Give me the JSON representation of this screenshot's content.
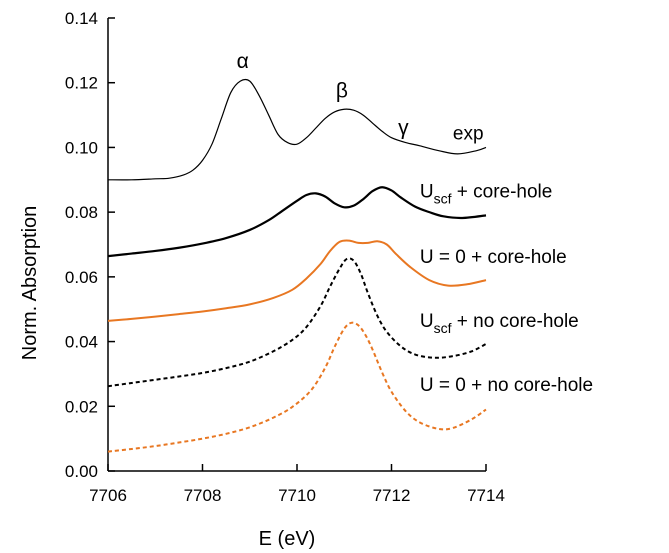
{
  "chart_data": {
    "type": "line",
    "xlabel": "E (eV)",
    "ylabel": "Norm. Absorption",
    "xlim": [
      7706,
      7714
    ],
    "ylim": [
      0.0,
      0.14
    ],
    "xticks": [
      "7706",
      "7708",
      "7710",
      "7712",
      "7714"
    ],
    "yticks": [
      "0.00",
      "0.02",
      "0.04",
      "0.06",
      "0.08",
      "0.10",
      "0.12",
      "0.14"
    ],
    "grid": false,
    "peak_labels": [
      {
        "text": "α",
        "x": 7708.85,
        "y": 0.1245
      },
      {
        "text": "β",
        "x": 7710.95,
        "y": 0.1154
      },
      {
        "text": "γ",
        "x": 7712.25,
        "y": 0.104
      }
    ],
    "series": [
      {
        "name": "exp",
        "label_main": "exp",
        "label_sub": "",
        "label_rest": "",
        "color": "#000000",
        "width": 1.2,
        "dash": "",
        "label_x": 7713.3,
        "label_y": 0.1025,
        "x": [
          7706.0,
          7706.5,
          7707.0,
          7707.3,
          7707.6,
          7707.8,
          7708.0,
          7708.2,
          7708.4,
          7708.6,
          7708.8,
          7709.0,
          7709.2,
          7709.4,
          7709.6,
          7709.8,
          7710.0,
          7710.2,
          7710.4,
          7710.6,
          7710.8,
          7711.0,
          7711.2,
          7711.4,
          7711.6,
          7711.8,
          7712.0,
          7712.3,
          7712.6,
          7713.0,
          7713.4,
          7713.8,
          7714.0
        ],
        "y": [
          0.09,
          0.09,
          0.0903,
          0.0905,
          0.0915,
          0.093,
          0.096,
          0.101,
          0.109,
          0.117,
          0.1205,
          0.1205,
          0.116,
          0.11,
          0.104,
          0.1015,
          0.101,
          0.103,
          0.106,
          0.109,
          0.111,
          0.1118,
          0.1115,
          0.11,
          0.1075,
          0.105,
          0.103,
          0.1015,
          0.1005,
          0.099,
          0.098,
          0.099,
          0.1
        ]
      },
      {
        "name": "Uscf + core-hole",
        "label_main": "U",
        "label_sub": "scf",
        "label_rest": " + core-hole",
        "color": "#000000",
        "width": 2.2,
        "dash": "",
        "label_x": 7712.6,
        "label_y": 0.0845,
        "x": [
          7706.0,
          7706.5,
          7707.0,
          7707.5,
          7708.0,
          7708.5,
          7709.0,
          7709.4,
          7709.7,
          7710.0,
          7710.2,
          7710.4,
          7710.6,
          7710.8,
          7711.0,
          7711.2,
          7711.4,
          7711.6,
          7711.8,
          7712.0,
          7712.2,
          7712.5,
          7712.8,
          7713.1,
          7713.5,
          7714.0
        ],
        "y": [
          0.0664,
          0.0672,
          0.068,
          0.069,
          0.0703,
          0.072,
          0.0745,
          0.0775,
          0.0805,
          0.0835,
          0.0853,
          0.0858,
          0.0848,
          0.0827,
          0.0815,
          0.082,
          0.084,
          0.0865,
          0.0877,
          0.0867,
          0.0845,
          0.0817,
          0.08,
          0.0787,
          0.0782,
          0.079
        ]
      },
      {
        "name": "U = 0 + core-hole",
        "label_main": "U = 0 + core-hole",
        "label_sub": "",
        "label_rest": "",
        "color": "#E87722",
        "width": 2.0,
        "dash": "",
        "label_x": 7712.6,
        "label_y": 0.0643,
        "x": [
          7706.0,
          7706.5,
          7707.0,
          7707.5,
          7708.0,
          7708.5,
          7709.0,
          7709.5,
          7709.9,
          7710.2,
          7710.5,
          7710.7,
          7710.9,
          7711.1,
          7711.3,
          7711.5,
          7711.7,
          7711.9,
          7712.1,
          7712.4,
          7712.8,
          7713.2,
          7713.6,
          7714.0
        ],
        "y": [
          0.0464,
          0.047,
          0.0477,
          0.0485,
          0.0493,
          0.0503,
          0.0515,
          0.0535,
          0.056,
          0.0595,
          0.064,
          0.068,
          0.0708,
          0.0712,
          0.0705,
          0.0705,
          0.071,
          0.07,
          0.067,
          0.063,
          0.059,
          0.0573,
          0.0577,
          0.059
        ]
      },
      {
        "name": "Uscf + no core-hole",
        "label_main": "U",
        "label_sub": "scf",
        "label_rest": " + no core-hole",
        "color": "#000000",
        "width": 2.0,
        "dash": "4,3",
        "label_x": 7712.6,
        "label_y": 0.0445,
        "x": [
          7706.0,
          7706.5,
          7707.0,
          7707.5,
          7708.0,
          7708.5,
          7709.0,
          7709.5,
          7709.9,
          7710.2,
          7710.5,
          7710.7,
          7710.9,
          7711.05,
          7711.2,
          7711.35,
          7711.5,
          7711.7,
          7711.9,
          7712.2,
          7712.5,
          7712.9,
          7713.3,
          7713.7,
          7714.0
        ],
        "y": [
          0.0262,
          0.0272,
          0.0282,
          0.0292,
          0.0303,
          0.0318,
          0.0338,
          0.037,
          0.0405,
          0.0445,
          0.051,
          0.057,
          0.0625,
          0.0655,
          0.065,
          0.061,
          0.055,
          0.048,
          0.043,
          0.0385,
          0.036,
          0.035,
          0.0355,
          0.037,
          0.0393
        ]
      },
      {
        "name": "U = 0 + no core-hole",
        "label_main": "U = 0 + no core-hole",
        "label_sub": "",
        "label_rest": "",
        "color": "#E87722",
        "width": 2.0,
        "dash": "4,3",
        "label_x": 7712.6,
        "label_y": 0.0248,
        "x": [
          7706.0,
          7706.5,
          7707.0,
          7707.5,
          7708.0,
          7708.5,
          7709.0,
          7709.5,
          7709.9,
          7710.3,
          7710.6,
          7710.8,
          7711.0,
          7711.15,
          7711.3,
          7711.45,
          7711.6,
          7711.8,
          7712.0,
          7712.3,
          7712.6,
          7713.0,
          7713.3,
          7713.7,
          7714.0
        ],
        "y": [
          0.006,
          0.0068,
          0.0077,
          0.0088,
          0.01,
          0.0115,
          0.0135,
          0.0165,
          0.0198,
          0.025,
          0.032,
          0.0385,
          0.044,
          0.0458,
          0.045,
          0.042,
          0.0375,
          0.0305,
          0.0245,
          0.0185,
          0.015,
          0.013,
          0.0133,
          0.016,
          0.019
        ]
      }
    ]
  }
}
